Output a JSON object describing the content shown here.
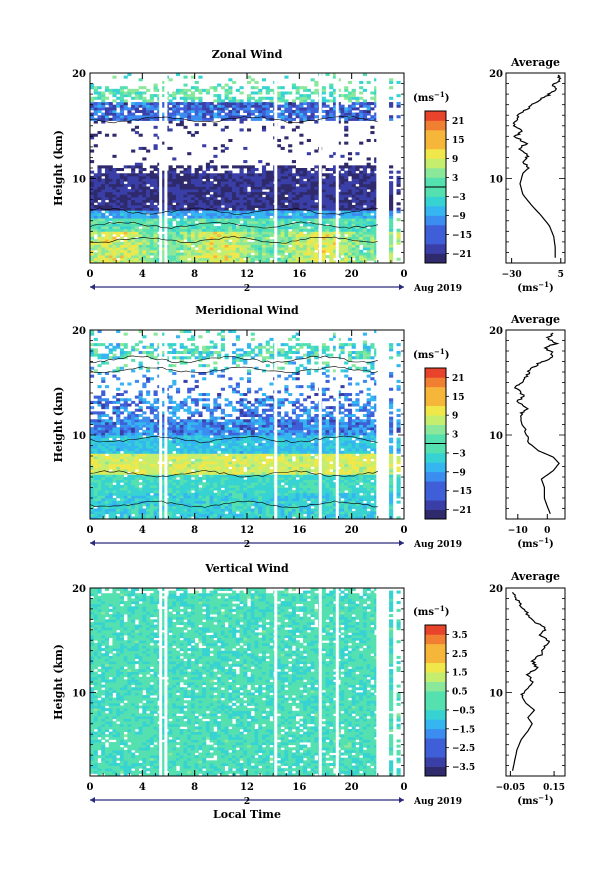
{
  "figure_title": "",
  "chart_data": [
    {
      "type": "heatmap",
      "title": "Zonal Wind",
      "xlabel": "",
      "ylabel": "Height (km)",
      "xlim": [
        0,
        24
      ],
      "ylim": [
        2,
        20
      ],
      "x_ticks": [
        "0",
        "4",
        "8",
        "12",
        "16",
        "20",
        "0"
      ],
      "y_ticks": [
        "10",
        "20"
      ],
      "day_label": "2",
      "date_label": "Aug 2019",
      "colorbar": {
        "unit": "(ms",
        "unit_sup": "−1",
        "unit_close": ")",
        "ticks": [
          "21",
          "15",
          "9",
          "3",
          "−3",
          "−9",
          "−15",
          "−21"
        ],
        "range": [
          -24,
          24
        ]
      },
      "profile": {
        "title": "Average",
        "xlabel": "(ms",
        "xlabel_sup": "−1",
        "xlabel_close": ")",
        "x_ticks": [
          "−30",
          "5"
        ],
        "xlim": [
          -34,
          8
        ],
        "y_ticks": [
          "10",
          "20"
        ],
        "ylim": [
          2,
          20
        ],
        "points": [
          [
            1,
            2.5
          ],
          [
            1,
            3.5
          ],
          [
            0,
            4.5
          ],
          [
            -3,
            5.5
          ],
          [
            -9,
            6.5
          ],
          [
            -16,
            7.5
          ],
          [
            -22,
            8.5
          ],
          [
            -24,
            9.5
          ],
          [
            -22,
            10.5
          ],
          [
            -18,
            11
          ],
          [
            -22,
            11.7
          ],
          [
            -18,
            12.2
          ],
          [
            -25,
            12.8
          ],
          [
            -20,
            13.3
          ],
          [
            -27,
            14
          ],
          [
            -22,
            14.5
          ],
          [
            -29,
            15
          ],
          [
            -26,
            15.6
          ],
          [
            -24,
            16.2
          ],
          [
            -17,
            16.8
          ],
          [
            -11,
            17.4
          ],
          [
            -4,
            17.9
          ],
          [
            1,
            18.4
          ],
          [
            0,
            18.9
          ],
          [
            4,
            19.3
          ],
          [
            3,
            19.8
          ]
        ]
      }
    },
    {
      "type": "heatmap",
      "title": "Meridional Wind",
      "xlabel": "",
      "ylabel": "Height (km)",
      "xlim": [
        0,
        24
      ],
      "ylim": [
        2,
        20
      ],
      "x_ticks": [
        "0",
        "4",
        "8",
        "12",
        "16",
        "20",
        "0"
      ],
      "y_ticks": [
        "10",
        "20"
      ],
      "day_label": "2",
      "date_label": "Aug 2019",
      "colorbar": {
        "unit": "(ms",
        "unit_sup": "−1",
        "unit_close": ")",
        "ticks": [
          "21",
          "15",
          "9",
          "3",
          "−3",
          "−9",
          "−15",
          "−21"
        ],
        "range": [
          -24,
          24
        ]
      },
      "profile": {
        "title": "Average",
        "xlabel": "(ms",
        "xlabel_sup": "−1",
        "xlabel_close": ")",
        "x_ticks": [
          "−10",
          "0"
        ],
        "xlim": [
          -14,
          6
        ],
        "y_ticks": [
          "10",
          "20"
        ],
        "ylim": [
          2,
          20
        ],
        "points": [
          [
            1,
            2.5
          ],
          [
            0,
            3.2
          ],
          [
            -1,
            4
          ],
          [
            -1,
            5
          ],
          [
            -2,
            5.8
          ],
          [
            2,
            6.6
          ],
          [
            4,
            7.3
          ],
          [
            2,
            7.9
          ],
          [
            -3,
            8.5
          ],
          [
            -6,
            9.2
          ],
          [
            -7,
            10.2
          ],
          [
            -8,
            11
          ],
          [
            -9,
            12
          ],
          [
            -7,
            12.5
          ],
          [
            -10,
            13.2
          ],
          [
            -8,
            13.8
          ],
          [
            -11,
            14.5
          ],
          [
            -9,
            15
          ],
          [
            -7,
            15.6
          ],
          [
            -6,
            16.2
          ],
          [
            -3,
            16.8
          ],
          [
            1,
            17.2
          ],
          [
            2,
            17.8
          ],
          [
            -1,
            18.3
          ],
          [
            3,
            18.7
          ],
          [
            0,
            19.2
          ],
          [
            2,
            19.7
          ]
        ]
      }
    },
    {
      "type": "heatmap",
      "title": "Vertical Wind",
      "xlabel": "Local Time",
      "ylabel": "Height (km)",
      "xlim": [
        0,
        24
      ],
      "ylim": [
        2,
        20
      ],
      "x_ticks": [
        "0",
        "4",
        "8",
        "12",
        "16",
        "20",
        "0"
      ],
      "y_ticks": [
        "10",
        "20"
      ],
      "day_label": "2",
      "date_label": "Aug 2019",
      "colorbar": {
        "unit": "(ms",
        "unit_sup": "−1",
        "unit_close": ")",
        "ticks": [
          "3.5",
          "2.5",
          "1.5",
          "0.5",
          "−0.5",
          "−1.5",
          "−2.5",
          "−3.5"
        ],
        "range": [
          -4,
          4
        ]
      },
      "profile": {
        "title": "Average",
        "xlabel": "(ms",
        "xlabel_sup": "−1",
        "xlabel_close": ")",
        "x_ticks": [
          "−0.05",
          "0.15"
        ],
        "xlim": [
          -0.07,
          0.2
        ],
        "y_ticks": [
          "10",
          "20"
        ],
        "ylim": [
          2,
          20
        ],
        "points": [
          [
            -0.04,
            2.5
          ],
          [
            -0.03,
            3.5
          ],
          [
            -0.02,
            4.5
          ],
          [
            0.0,
            5.5
          ],
          [
            0.03,
            6.3
          ],
          [
            0.05,
            7
          ],
          [
            0.03,
            7.6
          ],
          [
            0.06,
            8.3
          ],
          [
            0.02,
            9
          ],
          [
            0.0,
            9.7
          ],
          [
            0.02,
            10.3
          ],
          [
            0.05,
            11
          ],
          [
            0.03,
            11.7
          ],
          [
            0.07,
            12.4
          ],
          [
            0.05,
            13
          ],
          [
            0.09,
            13.6
          ],
          [
            0.1,
            14.3
          ],
          [
            0.13,
            14.9
          ],
          [
            0.09,
            15.5
          ],
          [
            0.11,
            16.1
          ],
          [
            0.06,
            16.8
          ],
          [
            0.03,
            17.5
          ],
          [
            0.0,
            18.2
          ],
          [
            -0.02,
            18.9
          ],
          [
            -0.04,
            19.6
          ]
        ]
      }
    }
  ]
}
